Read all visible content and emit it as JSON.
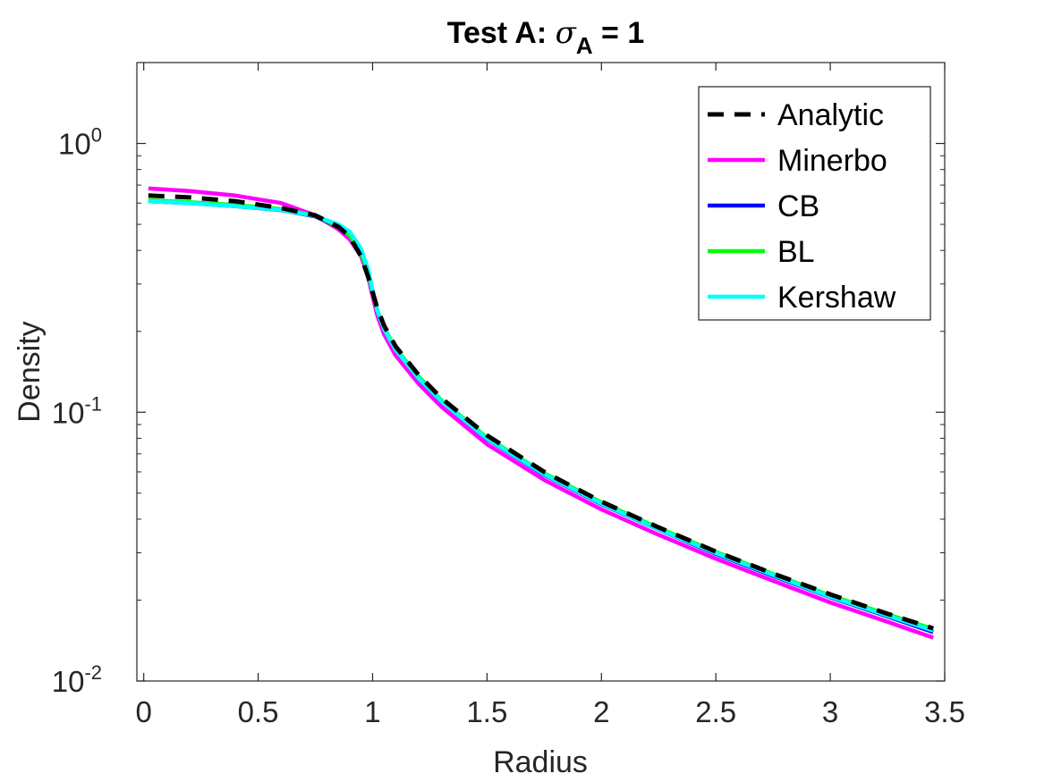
{
  "chart_data": {
    "type": "line",
    "title": {
      "prefix": "Test A: ",
      "symbol": "σ",
      "subscript": "A",
      "suffix": " = 1"
    },
    "xlabel": "Radius",
    "ylabel": "Density",
    "xlim": [
      -0.03,
      3.5
    ],
    "ylim": [
      0.01,
      2.0
    ],
    "yscale": "log",
    "grid": false,
    "legend_position": "top-right",
    "xticks": [
      {
        "value": 0,
        "label": "0"
      },
      {
        "value": 0.5,
        "label": "0.5"
      },
      {
        "value": 1,
        "label": "1"
      },
      {
        "value": 1.5,
        "label": "1.5"
      },
      {
        "value": 2,
        "label": "2"
      },
      {
        "value": 2.5,
        "label": "2.5"
      },
      {
        "value": 3,
        "label": "3"
      },
      {
        "value": 3.5,
        "label": "3.5"
      }
    ],
    "yticks": [
      {
        "value": 0.01,
        "base": "10",
        "exp": "-2"
      },
      {
        "value": 0.1,
        "base": "10",
        "exp": "-1"
      },
      {
        "value": 1,
        "base": "10",
        "exp": "0"
      }
    ],
    "x": [
      0.02,
      0.2,
      0.4,
      0.6,
      0.75,
      0.85,
      0.9,
      0.95,
      0.98,
      1.0,
      1.02,
      1.05,
      1.1,
      1.2,
      1.3,
      1.5,
      1.75,
      2.0,
      2.25,
      2.5,
      2.75,
      3.0,
      3.25,
      3.45
    ],
    "series": [
      {
        "name": "Minerbo",
        "color": "#ff00ff",
        "dash": "solid",
        "values": [
          0.68,
          0.665,
          0.64,
          0.6,
          0.54,
          0.48,
          0.44,
          0.38,
          0.32,
          0.27,
          0.23,
          0.195,
          0.163,
          0.128,
          0.105,
          0.076,
          0.056,
          0.0435,
          0.035,
          0.0285,
          0.0236,
          0.0196,
          0.0166,
          0.0145
        ]
      },
      {
        "name": "CB",
        "color": "#0000ff",
        "dash": "solid",
        "values": [
          0.61,
          0.6,
          0.585,
          0.565,
          0.535,
          0.49,
          0.455,
          0.39,
          0.33,
          0.28,
          0.24,
          0.205,
          0.172,
          0.134,
          0.11,
          0.0795,
          0.0585,
          0.0455,
          0.0366,
          0.0297,
          0.0246,
          0.0205,
          0.0174,
          0.0152
        ]
      },
      {
        "name": "BL",
        "color": "#00ff00",
        "dash": "solid",
        "values": [
          0.615,
          0.605,
          0.59,
          0.57,
          0.54,
          0.49,
          0.455,
          0.39,
          0.33,
          0.28,
          0.24,
          0.206,
          0.173,
          0.136,
          0.111,
          0.0805,
          0.0593,
          0.0462,
          0.0371,
          0.0302,
          0.025,
          0.0208,
          0.0177,
          0.0156
        ]
      },
      {
        "name": "Kershaw",
        "color": "#00ffff",
        "dash": "solid",
        "values": [
          0.61,
          0.6,
          0.585,
          0.566,
          0.537,
          0.5,
          0.47,
          0.405,
          0.34,
          0.285,
          0.24,
          0.204,
          0.171,
          0.134,
          0.11,
          0.0798,
          0.0588,
          0.0457,
          0.0367,
          0.0299,
          0.0248,
          0.0206,
          0.0175,
          0.0154
        ]
      },
      {
        "name": "Analytic",
        "color": "#000000",
        "dash": "dashed",
        "values": [
          0.64,
          0.63,
          0.61,
          0.575,
          0.54,
          0.49,
          0.45,
          0.38,
          0.32,
          0.28,
          0.245,
          0.21,
          0.176,
          0.138,
          0.113,
          0.082,
          0.06,
          0.0465,
          0.0373,
          0.0303,
          0.0251,
          0.021,
          0.0178,
          0.0157
        ]
      }
    ],
    "legend": [
      "Analytic",
      "Minerbo",
      "CB",
      "BL",
      "Kershaw"
    ]
  }
}
